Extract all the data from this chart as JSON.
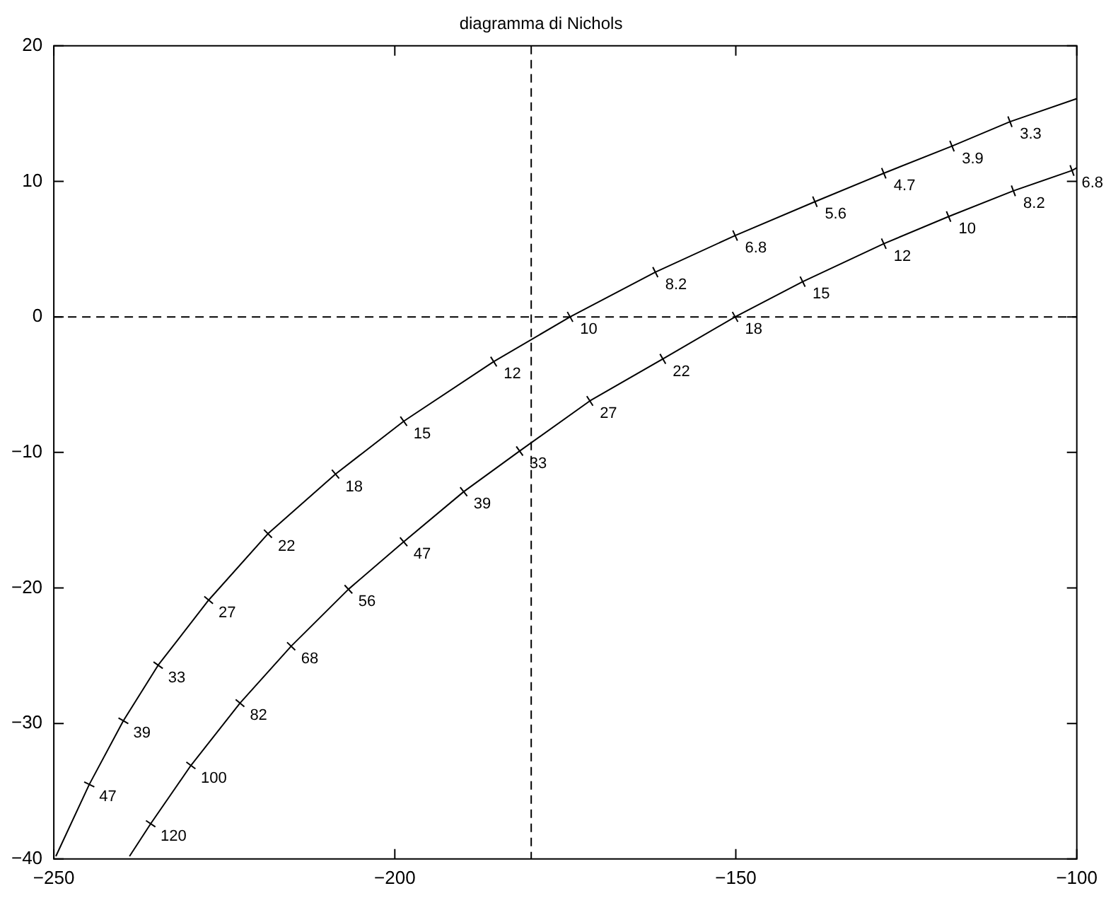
{
  "chart_data": {
    "type": "line",
    "title": "diagramma di Nichols",
    "marker": "cross",
    "series": [
      {
        "color": "#000000",
        "x": [
          -100,
          -109.8,
          -118.3,
          -128.3,
          -138.4,
          -150.1,
          -161.8,
          -174.3,
          -185.5,
          -198.7,
          -208.7,
          -218.6,
          -227.3,
          -234.7,
          -239.8,
          -244.8,
          -249.7
        ],
        "values": [
          16.1,
          14.4,
          12.6,
          10.6,
          8.5,
          6.0,
          3.3,
          0.0,
          -3.3,
          -7.7,
          -11.6,
          -16.0,
          -20.9,
          -25.7,
          -29.8,
          -34.5,
          -39.8
        ]
      },
      {
        "color": "#000000",
        "x": [
          -100,
          -100.7,
          -109.3,
          -118.8,
          -128.3,
          -140.2,
          -150.1,
          -160.7,
          -171.4,
          -181.7,
          -189.9,
          -198.7,
          -206.8,
          -215.2,
          -222.7,
          -229.9,
          -235.8,
          -238.9
        ],
        "values": [
          11.0,
          10.8,
          9.3,
          7.4,
          5.4,
          2.6,
          0.0,
          -3.1,
          -6.2,
          -9.9,
          -12.9,
          -16.6,
          -20.1,
          -24.3,
          -28.5,
          -33.1,
          -37.4,
          -39.8
        ]
      }
    ],
    "annotations": [
      {
        "text": "3.3",
        "x": -109.8,
        "y": 14.4
      },
      {
        "text": "3.9",
        "x": -118.3,
        "y": 12.6
      },
      {
        "text": "4.7",
        "x": -128.3,
        "y": 10.6
      },
      {
        "text": "5.6",
        "x": -138.4,
        "y": 8.5
      },
      {
        "text": "6.8",
        "x": -150.1,
        "y": 6.0
      },
      {
        "text": "8.2",
        "x": -161.8,
        "y": 3.3
      },
      {
        "text": "10",
        "x": -174.3,
        "y": 0.0
      },
      {
        "text": "12",
        "x": -185.5,
        "y": -3.3
      },
      {
        "text": "15",
        "x": -198.7,
        "y": -7.7
      },
      {
        "text": "18",
        "x": -208.7,
        "y": -11.6
      },
      {
        "text": "22",
        "x": -218.6,
        "y": -16.0
      },
      {
        "text": "27",
        "x": -227.3,
        "y": -20.9
      },
      {
        "text": "33",
        "x": -234.7,
        "y": -25.7
      },
      {
        "text": "39",
        "x": -239.8,
        "y": -29.8
      },
      {
        "text": "47",
        "x": -244.8,
        "y": -34.5
      },
      {
        "text": "6.8",
        "x": -100.7,
        "y": 10.8
      },
      {
        "text": "8.2",
        "x": -109.3,
        "y": 9.3
      },
      {
        "text": "10",
        "x": -118.8,
        "y": 7.4
      },
      {
        "text": "12",
        "x": -128.3,
        "y": 5.4
      },
      {
        "text": "15",
        "x": -140.2,
        "y": 2.6
      },
      {
        "text": "18",
        "x": -150.1,
        "y": 0.0
      },
      {
        "text": "22",
        "x": -160.7,
        "y": -3.1
      },
      {
        "text": "27",
        "x": -171.4,
        "y": -6.2
      },
      {
        "text": "33",
        "x": -181.7,
        "y": -9.9
      },
      {
        "text": "39",
        "x": -189.9,
        "y": -12.9
      },
      {
        "text": "47",
        "x": -198.7,
        "y": -16.6
      },
      {
        "text": "56",
        "x": -206.8,
        "y": -20.1
      },
      {
        "text": "68",
        "x": -215.2,
        "y": -24.3
      },
      {
        "text": "82",
        "x": -222.7,
        "y": -28.5
      },
      {
        "text": "100",
        "x": -229.9,
        "y": -33.1
      },
      {
        "text": "120",
        "x": -235.8,
        "y": -37.4
      }
    ],
    "xlim": [
      -250,
      -100
    ],
    "xticks": [
      -250,
      -200,
      -150,
      -100
    ],
    "ylim": [
      -40,
      20
    ],
    "yticks": [
      -40,
      -30,
      -20,
      -10,
      0,
      10,
      20
    ],
    "ref_lines": [
      {
        "axis": "y",
        "value": 0,
        "color": "#000000",
        "line_style": "dashed"
      },
      {
        "axis": "x",
        "value": -180,
        "color": "#000000",
        "line_style": "dashed"
      }
    ]
  }
}
